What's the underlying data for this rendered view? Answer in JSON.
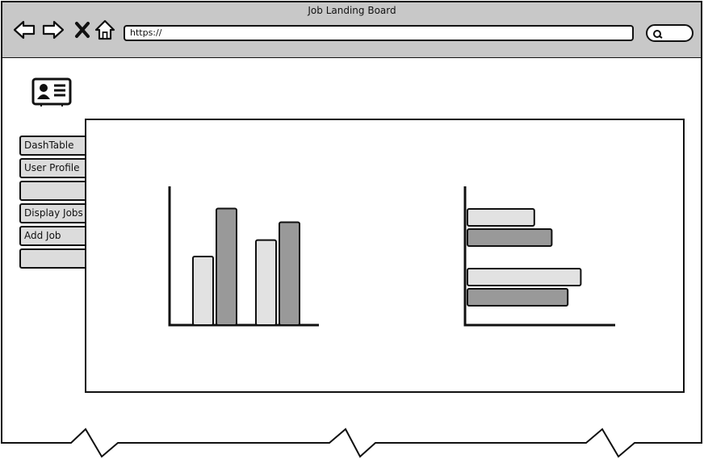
{
  "window": {
    "title": "Job Landing Board"
  },
  "browser": {
    "url": "https://",
    "back_icon": "back-arrow-icon",
    "forward_icon": "forward-arrow-icon",
    "stop_icon": "close-icon",
    "home_icon": "home-icon",
    "search_icon": "search-icon"
  },
  "sidebar": {
    "logo_icon": "id-card-icon",
    "tabs": [
      {
        "label": "DashTable"
      },
      {
        "label": "User Profile"
      },
      {
        "label": ""
      },
      {
        "label": "Display Jobs"
      },
      {
        "label": "Add Job"
      },
      {
        "label": ""
      }
    ]
  },
  "colors": {
    "light_bar": "#e2e2e2",
    "dark_bar": "#999999",
    "chrome": "#c8c8c8",
    "tab": "#dcdcdc"
  },
  "chart_data": [
    {
      "type": "bar",
      "orientation": "vertical",
      "categories": [
        "",
        ""
      ],
      "series": [
        {
          "values": [
            5,
            6.2
          ]
        },
        {
          "values": [
            8.5,
            7.5
          ]
        }
      ],
      "ylim": [
        0,
        10
      ]
    },
    {
      "type": "bar",
      "orientation": "horizontal",
      "categories": [
        "",
        ""
      ],
      "series": [
        {
          "values": [
            4.6,
            7.8
          ]
        },
        {
          "values": [
            5.8,
            6.9
          ]
        }
      ],
      "xlim": [
        0,
        10
      ]
    }
  ]
}
